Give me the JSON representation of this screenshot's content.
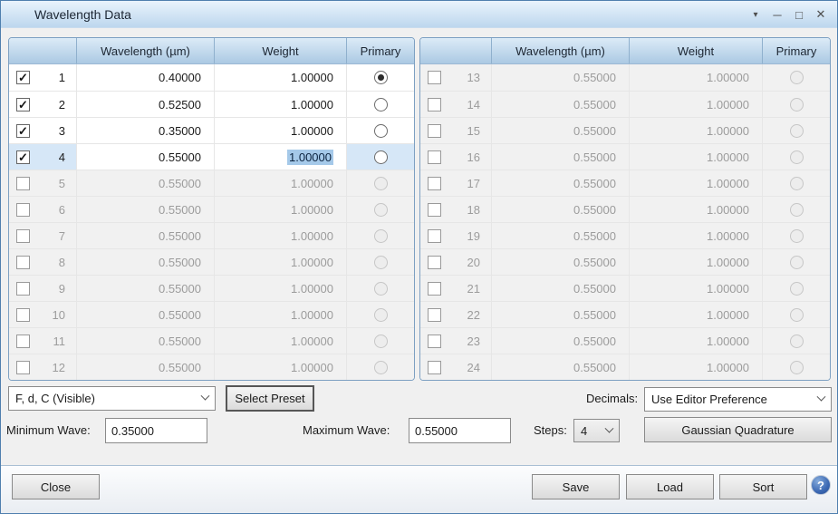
{
  "window": {
    "title": "Wavelength Data",
    "controls": [
      {
        "name": "menu",
        "glyph": "▾"
      },
      {
        "name": "minimize",
        "glyph": "─"
      },
      {
        "name": "maximize",
        "glyph": "□"
      },
      {
        "name": "close",
        "glyph": "✕"
      }
    ]
  },
  "colors": {
    "title_gradient_bottom": "#bdd7ee",
    "header_gradient_bottom": "#abc9e3",
    "panel_border": "#7da0c2",
    "selected_row": "#d6e7f7",
    "text_selection": "#a5c9e9",
    "disabled_row": "#f1f1f1",
    "help_blue": "#3a67b2"
  },
  "table": {
    "headers": [
      "",
      "Wavelength (µm)",
      "Weight",
      "Primary"
    ],
    "left_rows": [
      {
        "num": "1",
        "wavelength": "0.40000",
        "weight": "1.00000",
        "checked": true,
        "enabled": true,
        "primary": true,
        "selected": false,
        "editing_weight": false
      },
      {
        "num": "2",
        "wavelength": "0.52500",
        "weight": "1.00000",
        "checked": true,
        "enabled": true,
        "primary": false,
        "selected": false,
        "editing_weight": false
      },
      {
        "num": "3",
        "wavelength": "0.35000",
        "weight": "1.00000",
        "checked": true,
        "enabled": true,
        "primary": false,
        "selected": false,
        "editing_weight": false
      },
      {
        "num": "4",
        "wavelength": "0.55000",
        "weight": "1.00000",
        "checked": true,
        "enabled": true,
        "primary": false,
        "selected": true,
        "editing_weight": true
      },
      {
        "num": "5",
        "wavelength": "0.55000",
        "weight": "1.00000",
        "checked": false,
        "enabled": false,
        "primary": false,
        "selected": false,
        "editing_weight": false
      },
      {
        "num": "6",
        "wavelength": "0.55000",
        "weight": "1.00000",
        "checked": false,
        "enabled": false,
        "primary": false,
        "selected": false,
        "editing_weight": false
      },
      {
        "num": "7",
        "wavelength": "0.55000",
        "weight": "1.00000",
        "checked": false,
        "enabled": false,
        "primary": false,
        "selected": false,
        "editing_weight": false
      },
      {
        "num": "8",
        "wavelength": "0.55000",
        "weight": "1.00000",
        "checked": false,
        "enabled": false,
        "primary": false,
        "selected": false,
        "editing_weight": false
      },
      {
        "num": "9",
        "wavelength": "0.55000",
        "weight": "1.00000",
        "checked": false,
        "enabled": false,
        "primary": false,
        "selected": false,
        "editing_weight": false
      },
      {
        "num": "10",
        "wavelength": "0.55000",
        "weight": "1.00000",
        "checked": false,
        "enabled": false,
        "primary": false,
        "selected": false,
        "editing_weight": false
      },
      {
        "num": "11",
        "wavelength": "0.55000",
        "weight": "1.00000",
        "checked": false,
        "enabled": false,
        "primary": false,
        "selected": false,
        "editing_weight": false
      },
      {
        "num": "12",
        "wavelength": "0.55000",
        "weight": "1.00000",
        "checked": false,
        "enabled": false,
        "primary": false,
        "selected": false,
        "editing_weight": false
      }
    ],
    "right_rows": [
      {
        "num": "13",
        "wavelength": "0.55000",
        "weight": "1.00000",
        "checked": false,
        "enabled": false,
        "primary": false,
        "selected": false,
        "editing_weight": false
      },
      {
        "num": "14",
        "wavelength": "0.55000",
        "weight": "1.00000",
        "checked": false,
        "enabled": false,
        "primary": false,
        "selected": false,
        "editing_weight": false
      },
      {
        "num": "15",
        "wavelength": "0.55000",
        "weight": "1.00000",
        "checked": false,
        "enabled": false,
        "primary": false,
        "selected": false,
        "editing_weight": false
      },
      {
        "num": "16",
        "wavelength": "0.55000",
        "weight": "1.00000",
        "checked": false,
        "enabled": false,
        "primary": false,
        "selected": false,
        "editing_weight": false
      },
      {
        "num": "17",
        "wavelength": "0.55000",
        "weight": "1.00000",
        "checked": false,
        "enabled": false,
        "primary": false,
        "selected": false,
        "editing_weight": false
      },
      {
        "num": "18",
        "wavelength": "0.55000",
        "weight": "1.00000",
        "checked": false,
        "enabled": false,
        "primary": false,
        "selected": false,
        "editing_weight": false
      },
      {
        "num": "19",
        "wavelength": "0.55000",
        "weight": "1.00000",
        "checked": false,
        "enabled": false,
        "primary": false,
        "selected": false,
        "editing_weight": false
      },
      {
        "num": "20",
        "wavelength": "0.55000",
        "weight": "1.00000",
        "checked": false,
        "enabled": false,
        "primary": false,
        "selected": false,
        "editing_weight": false
      },
      {
        "num": "21",
        "wavelength": "0.55000",
        "weight": "1.00000",
        "checked": false,
        "enabled": false,
        "primary": false,
        "selected": false,
        "editing_weight": false
      },
      {
        "num": "22",
        "wavelength": "0.55000",
        "weight": "1.00000",
        "checked": false,
        "enabled": false,
        "primary": false,
        "selected": false,
        "editing_weight": false
      },
      {
        "num": "23",
        "wavelength": "0.55000",
        "weight": "1.00000",
        "checked": false,
        "enabled": false,
        "primary": false,
        "selected": false,
        "editing_weight": false
      },
      {
        "num": "24",
        "wavelength": "0.55000",
        "weight": "1.00000",
        "checked": false,
        "enabled": false,
        "primary": false,
        "selected": false,
        "editing_weight": false
      }
    ]
  },
  "controls": {
    "preset_combo_value": "F, d, C (Visible)",
    "select_preset_label": "Select Preset",
    "decimals_label": "Decimals:",
    "decimals_combo_value": "Use Editor Preference",
    "min_wave_label": "Minimum Wave:",
    "min_wave_value": "0.35000",
    "max_wave_label": "Maximum Wave:",
    "max_wave_value": "0.55000",
    "steps_label": "Steps:",
    "steps_value": "4",
    "gaussian_label": "Gaussian Quadrature"
  },
  "footer": {
    "close_label": "Close",
    "save_label": "Save",
    "load_label": "Load",
    "sort_label": "Sort",
    "help_glyph": "?"
  }
}
